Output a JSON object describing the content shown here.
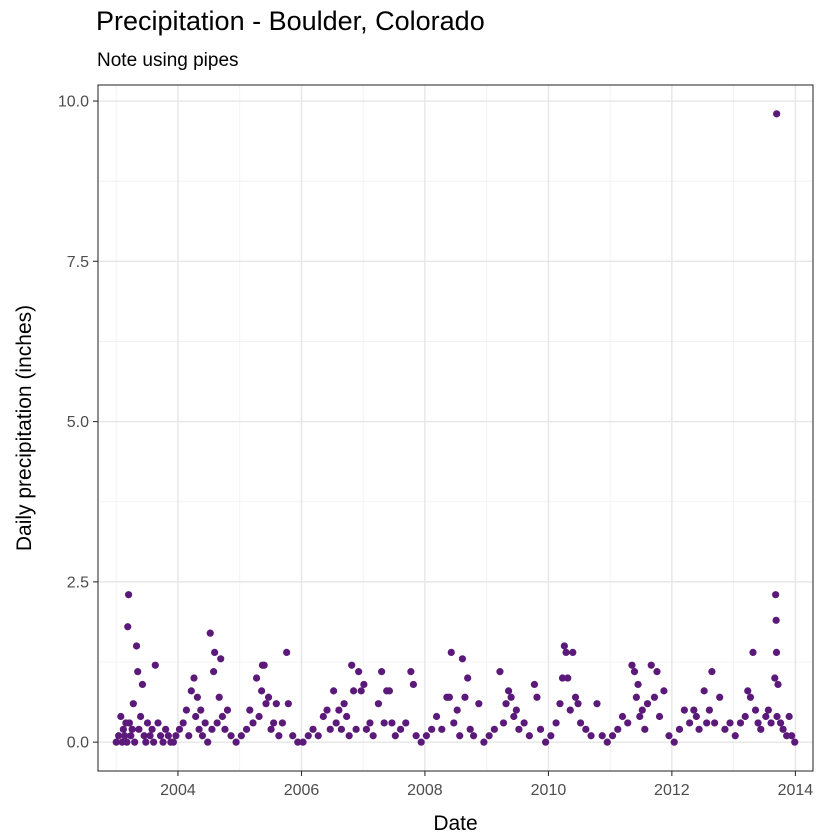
{
  "chart_data": {
    "type": "scatter",
    "title": "Precipitation - Boulder, Colorado",
    "subtitle": "Note using pipes",
    "xlabel": "Date",
    "ylabel": "Daily precipitation (inches)",
    "xlim": [
      "2002-09-15",
      "2014-04-15"
    ],
    "ylim": [
      -0.45,
      10.25
    ],
    "x_ticks": [
      {
        "value": "2004-01-01",
        "label": "2004"
      },
      {
        "value": "2006-01-01",
        "label": "2006"
      },
      {
        "value": "2008-01-01",
        "label": "2008"
      },
      {
        "value": "2010-01-01",
        "label": "2010"
      },
      {
        "value": "2012-01-01",
        "label": "2012"
      },
      {
        "value": "2014-01-01",
        "label": "2014"
      }
    ],
    "y_ticks": [
      {
        "value": 0.0,
        "label": "0.0"
      },
      {
        "value": 2.5,
        "label": "2.5"
      },
      {
        "value": 5.0,
        "label": "5.0"
      },
      {
        "value": 7.5,
        "label": "7.5"
      },
      {
        "value": 10.0,
        "label": "10.0"
      }
    ],
    "grid": true,
    "color": "#5b1a7a",
    "points": [
      [
        "2003-01-01",
        0.0
      ],
      [
        "2003-01-15",
        0.1
      ],
      [
        "2003-01-28",
        0.4
      ],
      [
        "2003-02-05",
        0.0
      ],
      [
        "2003-02-12",
        0.2
      ],
      [
        "2003-02-20",
        0.1
      ],
      [
        "2003-02-27",
        0.3
      ],
      [
        "2003-03-05",
        0.0
      ],
      [
        "2003-03-10",
        1.8
      ],
      [
        "2003-03-15",
        2.3
      ],
      [
        "2003-03-20",
        0.3
      ],
      [
        "2003-03-28",
        0.1
      ],
      [
        "2003-04-05",
        0.2
      ],
      [
        "2003-04-12",
        0.6
      ],
      [
        "2003-04-20",
        0.0
      ],
      [
        "2003-05-01",
        1.5
      ],
      [
        "2003-05-08",
        1.1
      ],
      [
        "2003-05-15",
        0.2
      ],
      [
        "2003-05-25",
        0.4
      ],
      [
        "2003-06-05",
        0.9
      ],
      [
        "2003-06-15",
        0.1
      ],
      [
        "2003-06-25",
        0.0
      ],
      [
        "2003-07-05",
        0.3
      ],
      [
        "2003-07-20",
        0.1
      ],
      [
        "2003-08-01",
        0.2
      ],
      [
        "2003-08-10",
        0.0
      ],
      [
        "2003-08-20",
        1.2
      ],
      [
        "2003-09-05",
        0.3
      ],
      [
        "2003-09-20",
        0.1
      ],
      [
        "2003-10-05",
        0.0
      ],
      [
        "2003-10-20",
        0.2
      ],
      [
        "2003-11-05",
        0.1
      ],
      [
        "2003-11-20",
        0.0
      ],
      [
        "2003-12-05",
        0.0
      ],
      [
        "2003-12-20",
        0.1
      ],
      [
        "2004-01-10",
        0.2
      ],
      [
        "2004-02-01",
        0.3
      ],
      [
        "2004-02-20",
        0.5
      ],
      [
        "2004-03-05",
        0.1
      ],
      [
        "2004-03-20",
        0.8
      ],
      [
        "2004-04-05",
        1.0
      ],
      [
        "2004-04-15",
        0.4
      ],
      [
        "2004-04-25",
        0.7
      ],
      [
        "2004-05-05",
        0.2
      ],
      [
        "2004-05-15",
        0.5
      ],
      [
        "2004-05-25",
        0.1
      ],
      [
        "2004-06-10",
        0.3
      ],
      [
        "2004-06-25",
        0.0
      ],
      [
        "2004-07-10",
        1.7
      ],
      [
        "2004-07-20",
        0.2
      ],
      [
        "2004-07-30",
        1.1
      ],
      [
        "2004-08-05",
        1.4
      ],
      [
        "2004-08-20",
        0.3
      ],
      [
        "2004-09-01",
        0.7
      ],
      [
        "2004-09-10",
        1.3
      ],
      [
        "2004-09-20",
        0.4
      ],
      [
        "2004-10-05",
        0.2
      ],
      [
        "2004-10-20",
        0.5
      ],
      [
        "2004-11-10",
        0.1
      ],
      [
        "2004-12-10",
        0.0
      ],
      [
        "2005-01-10",
        0.1
      ],
      [
        "2005-02-10",
        0.2
      ],
      [
        "2005-03-01",
        0.5
      ],
      [
        "2005-03-20",
        0.3
      ],
      [
        "2005-04-10",
        1.0
      ],
      [
        "2005-04-25",
        0.4
      ],
      [
        "2005-05-10",
        0.8
      ],
      [
        "2005-05-15",
        1.2
      ],
      [
        "2005-05-25",
        1.2
      ],
      [
        "2005-06-05",
        0.6
      ],
      [
        "2005-06-20",
        0.7
      ],
      [
        "2005-07-05",
        0.2
      ],
      [
        "2005-07-20",
        0.3
      ],
      [
        "2005-08-05",
        0.6
      ],
      [
        "2005-08-20",
        0.1
      ],
      [
        "2005-09-10",
        0.3
      ],
      [
        "2005-10-05",
        1.4
      ],
      [
        "2005-10-15",
        0.6
      ],
      [
        "2005-11-10",
        0.1
      ],
      [
        "2005-12-10",
        0.0
      ],
      [
        "2006-01-10",
        0.0
      ],
      [
        "2006-02-10",
        0.1
      ],
      [
        "2006-03-10",
        0.2
      ],
      [
        "2006-04-10",
        0.1
      ],
      [
        "2006-05-10",
        0.4
      ],
      [
        "2006-06-01",
        0.5
      ],
      [
        "2006-06-20",
        0.2
      ],
      [
        "2006-07-10",
        0.8
      ],
      [
        "2006-07-25",
        0.3
      ],
      [
        "2006-08-10",
        0.5
      ],
      [
        "2006-08-25",
        0.2
      ],
      [
        "2006-09-10",
        0.6
      ],
      [
        "2006-09-25",
        0.4
      ],
      [
        "2006-10-10",
        0.1
      ],
      [
        "2006-10-25",
        1.2
      ],
      [
        "2006-11-05",
        0.8
      ],
      [
        "2006-11-20",
        0.2
      ],
      [
        "2006-12-05",
        1.1
      ],
      [
        "2006-12-20",
        0.8
      ],
      [
        "2007-01-05",
        0.9
      ],
      [
        "2007-01-20",
        0.2
      ],
      [
        "2007-02-10",
        0.3
      ],
      [
        "2007-03-01",
        0.1
      ],
      [
        "2007-04-01",
        0.6
      ],
      [
        "2007-04-20",
        1.1
      ],
      [
        "2007-05-05",
        0.3
      ],
      [
        "2007-05-20",
        0.8
      ],
      [
        "2007-06-05",
        0.8
      ],
      [
        "2007-06-20",
        0.3
      ],
      [
        "2007-07-10",
        0.1
      ],
      [
        "2007-08-10",
        0.2
      ],
      [
        "2007-09-10",
        0.3
      ],
      [
        "2007-10-10",
        1.1
      ],
      [
        "2007-10-25",
        0.9
      ],
      [
        "2007-11-10",
        0.1
      ],
      [
        "2007-12-10",
        0.0
      ],
      [
        "2008-01-10",
        0.1
      ],
      [
        "2008-02-10",
        0.2
      ],
      [
        "2008-03-10",
        0.4
      ],
      [
        "2008-04-10",
        0.2
      ],
      [
        "2008-05-10",
        0.7
      ],
      [
        "2008-05-25",
        0.7
      ],
      [
        "2008-06-05",
        1.4
      ],
      [
        "2008-06-20",
        0.3
      ],
      [
        "2008-07-10",
        0.5
      ],
      [
        "2008-07-25",
        0.1
      ],
      [
        "2008-08-10",
        1.3
      ],
      [
        "2008-08-25",
        0.7
      ],
      [
        "2008-09-10",
        1.0
      ],
      [
        "2008-09-25",
        0.2
      ],
      [
        "2008-10-15",
        0.1
      ],
      [
        "2008-11-15",
        0.6
      ],
      [
        "2008-12-15",
        0.0
      ],
      [
        "2009-01-15",
        0.1
      ],
      [
        "2009-02-15",
        0.2
      ],
      [
        "2009-03-20",
        1.1
      ],
      [
        "2009-04-10",
        0.3
      ],
      [
        "2009-04-25",
        0.6
      ],
      [
        "2009-05-10",
        0.8
      ],
      [
        "2009-05-25",
        0.7
      ],
      [
        "2009-06-10",
        0.4
      ],
      [
        "2009-06-25",
        0.5
      ],
      [
        "2009-07-10",
        0.2
      ],
      [
        "2009-08-10",
        0.3
      ],
      [
        "2009-09-10",
        0.1
      ],
      [
        "2009-10-10",
        0.9
      ],
      [
        "2009-10-25",
        0.7
      ],
      [
        "2009-11-15",
        0.2
      ],
      [
        "2009-12-15",
        0.0
      ],
      [
        "2010-01-15",
        0.1
      ],
      [
        "2010-02-15",
        0.3
      ],
      [
        "2010-03-10",
        0.6
      ],
      [
        "2010-03-25",
        1.0
      ],
      [
        "2010-04-05",
        1.5
      ],
      [
        "2010-04-15",
        1.4
      ],
      [
        "2010-04-25",
        1.0
      ],
      [
        "2010-05-10",
        0.5
      ],
      [
        "2010-05-25",
        1.4
      ],
      [
        "2010-06-10",
        0.7
      ],
      [
        "2010-06-25",
        0.6
      ],
      [
        "2010-07-10",
        0.3
      ],
      [
        "2010-08-10",
        0.2
      ],
      [
        "2010-09-10",
        0.1
      ],
      [
        "2010-10-15",
        0.6
      ],
      [
        "2010-11-15",
        0.1
      ],
      [
        "2010-12-15",
        0.0
      ],
      [
        "2011-01-15",
        0.1
      ],
      [
        "2011-02-15",
        0.2
      ],
      [
        "2011-03-15",
        0.4
      ],
      [
        "2011-04-15",
        0.3
      ],
      [
        "2011-05-10",
        1.2
      ],
      [
        "2011-05-25",
        1.1
      ],
      [
        "2011-06-05",
        0.7
      ],
      [
        "2011-06-15",
        0.9
      ],
      [
        "2011-06-25",
        0.4
      ],
      [
        "2011-07-10",
        0.5
      ],
      [
        "2011-07-25",
        0.2
      ],
      [
        "2011-08-10",
        0.6
      ],
      [
        "2011-09-01",
        1.2
      ],
      [
        "2011-09-20",
        0.7
      ],
      [
        "2011-10-05",
        1.1
      ],
      [
        "2011-10-20",
        0.4
      ],
      [
        "2011-11-15",
        0.8
      ],
      [
        "2011-12-15",
        0.1
      ],
      [
        "2012-01-15",
        0.0
      ],
      [
        "2012-02-15",
        0.2
      ],
      [
        "2012-03-15",
        0.5
      ],
      [
        "2012-04-15",
        0.3
      ],
      [
        "2012-05-10",
        0.5
      ],
      [
        "2012-05-25",
        0.4
      ],
      [
        "2012-06-10",
        0.2
      ],
      [
        "2012-07-10",
        0.8
      ],
      [
        "2012-07-25",
        0.3
      ],
      [
        "2012-08-10",
        0.5
      ],
      [
        "2012-08-25",
        1.1
      ],
      [
        "2012-09-10",
        0.3
      ],
      [
        "2012-10-10",
        0.7
      ],
      [
        "2012-11-10",
        0.2
      ],
      [
        "2012-12-10",
        0.3
      ],
      [
        "2013-01-10",
        0.1
      ],
      [
        "2013-02-10",
        0.3
      ],
      [
        "2013-03-10",
        0.4
      ],
      [
        "2013-03-25",
        0.8
      ],
      [
        "2013-04-10",
        0.7
      ],
      [
        "2013-04-25",
        1.4
      ],
      [
        "2013-05-10",
        0.5
      ],
      [
        "2013-05-25",
        0.3
      ],
      [
        "2013-06-10",
        0.2
      ],
      [
        "2013-07-10",
        0.4
      ],
      [
        "2013-07-25",
        0.5
      ],
      [
        "2013-08-10",
        0.3
      ],
      [
        "2013-09-01",
        1.0
      ],
      [
        "2013-09-06",
        2.3
      ],
      [
        "2013-09-09",
        1.9
      ],
      [
        "2013-09-11",
        1.4
      ],
      [
        "2013-09-12",
        9.8
      ],
      [
        "2013-09-14",
        0.4
      ],
      [
        "2013-09-20",
        0.9
      ],
      [
        "2013-10-05",
        0.3
      ],
      [
        "2013-10-20",
        0.2
      ],
      [
        "2013-11-10",
        0.1
      ],
      [
        "2013-11-25",
        0.4
      ],
      [
        "2013-12-10",
        0.1
      ],
      [
        "2013-12-28",
        0.0
      ]
    ]
  }
}
